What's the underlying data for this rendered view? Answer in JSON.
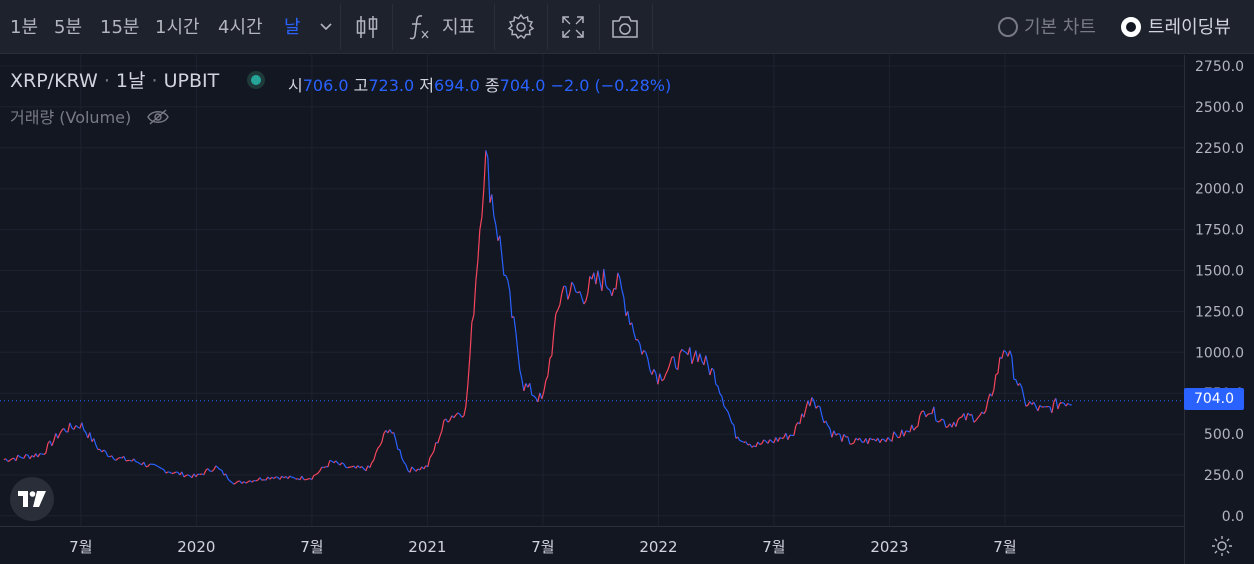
{
  "toolbar": {
    "intervals": [
      {
        "label": "1분",
        "active": false
      },
      {
        "label": "5분",
        "active": false
      },
      {
        "label": "15분",
        "active": false
      },
      {
        "label": "1시간",
        "active": false
      },
      {
        "label": "4시간",
        "active": false
      },
      {
        "label": "날",
        "active": true
      }
    ],
    "indicators_label": "지표",
    "view_basic_label": "기본 차트",
    "view_tv_label": "트레이딩뷰",
    "icons": [
      "chevron-down-icon",
      "candlestick-icon",
      "function-icon",
      "gear-icon",
      "fullscreen-icon",
      "camera-icon"
    ]
  },
  "legend": {
    "symbol": "XRP/KRW",
    "interval": "1날",
    "exchange": "UPBIT",
    "open_label": "시",
    "open": "706.0",
    "high_label": "고",
    "high": "723.0",
    "low_label": "저",
    "low": "694.0",
    "close_label": "종",
    "close": "704.0",
    "change": "−2.0 (−0.28%)",
    "volume_label": "거래량 (Volume)"
  },
  "colors": {
    "up": "#f6465d",
    "down": "#2962ff",
    "bg": "#131722",
    "grid": "#1e2230",
    "accent": "#2962ff"
  },
  "chart_data": {
    "type": "line",
    "title": "",
    "ylabel": "",
    "xlabel": "",
    "ylim": [
      -50,
      2800
    ],
    "y_ticks": [
      "2750.0",
      "2500.0",
      "2250.0",
      "2000.0",
      "1750.0",
      "1500.0",
      "1250.0",
      "1000.0",
      "750.0",
      "500.0",
      "250.0",
      "0.0"
    ],
    "x_ticks": [
      "7월",
      "2020",
      "7월",
      "2021",
      "7월",
      "2022",
      "7월",
      "2023",
      "7월"
    ],
    "last_price": "704.0",
    "grid": true,
    "series": [
      {
        "x": [
          "2019-03",
          "2019-04",
          "2019-05",
          "2019-06",
          "2019-07",
          "2019-08",
          "2019-09",
          "2019-10",
          "2019-11",
          "2019-12",
          "2020-01",
          "2020-02",
          "2020-03",
          "2020-04",
          "2020-05",
          "2020-06",
          "2020-07",
          "2020-08",
          "2020-09",
          "2020-10",
          "2020-11",
          "2020-12",
          "2021-01",
          "2021-02",
          "2021-03",
          "2021-04",
          "2021-05",
          "2021-06",
          "2021-07",
          "2021-08",
          "2021-09",
          "2021-10",
          "2021-11",
          "2021-12",
          "2022-01",
          "2022-02",
          "2022-03",
          "2022-04",
          "2022-05",
          "2022-06",
          "2022-07",
          "2022-08",
          "2022-09",
          "2022-10",
          "2022-11",
          "2022-12",
          "2023-01",
          "2023-02",
          "2023-03",
          "2023-04",
          "2023-05",
          "2023-06",
          "2023-07",
          "2023-08",
          "2023-09",
          "2023-10"
        ],
        "values": [
          345,
          360,
          380,
          520,
          560,
          400,
          350,
          330,
          290,
          260,
          240,
          300,
          200,
          220,
          240,
          230,
          235,
          330,
          290,
          290,
          550,
          280,
          300,
          600,
          650,
          2200,
          1500,
          800,
          700,
          1400,
          1350,
          1450,
          1400,
          1050,
          850,
          950,
          1000,
          850,
          500,
          430,
          460,
          500,
          740,
          510,
          450,
          460,
          480,
          510,
          660,
          560,
          600,
          620,
          1050,
          700,
          640,
          700
        ]
      }
    ]
  }
}
